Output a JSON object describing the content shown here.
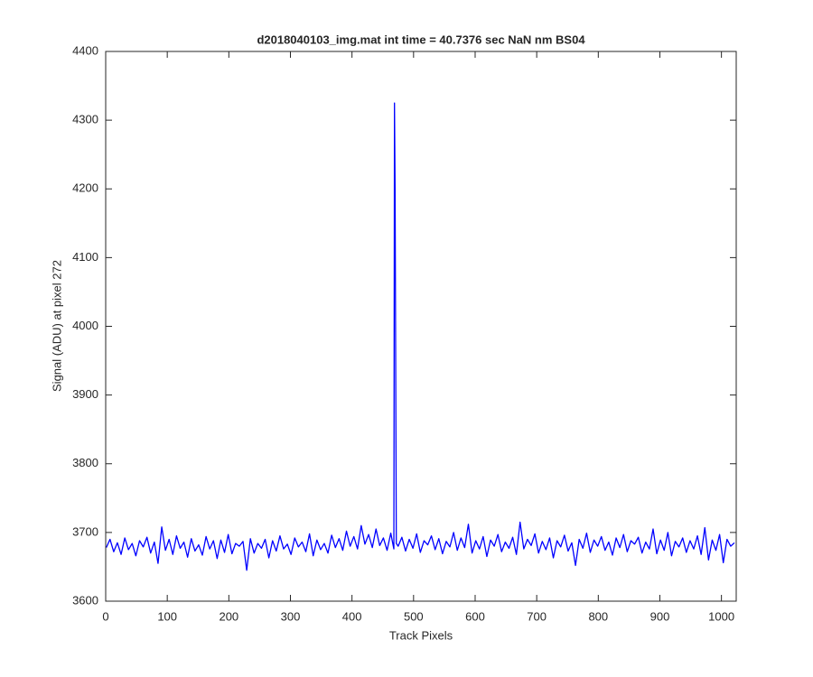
{
  "chart_data": {
    "type": "line",
    "title": "d2018040103_img.mat int time = 40.7376 sec  NaN nm BS04",
    "xlabel": "Track Pixels",
    "ylabel": "Signal (ADU) at pixel 272",
    "color": "#0000ff",
    "xlim": [
      0,
      1024
    ],
    "xticks": [
      0,
      100,
      200,
      300,
      400,
      500,
      600,
      700,
      800,
      900,
      1000
    ],
    "ylim": [
      3600,
      4400
    ],
    "yticks": [
      3600,
      3700,
      3800,
      3900,
      4000,
      4100,
      4200,
      4300,
      4400
    ],
    "x": [
      1,
      7,
      13,
      19,
      25,
      31,
      37,
      43,
      49,
      55,
      61,
      67,
      73,
      79,
      85,
      91,
      97,
      103,
      109,
      115,
      121,
      127,
      133,
      139,
      145,
      151,
      157,
      163,
      169,
      175,
      181,
      187,
      193,
      199,
      205,
      211,
      217,
      223,
      229,
      235,
      241,
      247,
      253,
      259,
      265,
      271,
      277,
      283,
      289,
      295,
      301,
      307,
      313,
      319,
      325,
      331,
      337,
      343,
      349,
      355,
      361,
      367,
      373,
      379,
      385,
      391,
      397,
      403,
      409,
      415,
      421,
      427,
      433,
      439,
      445,
      451,
      457,
      463,
      466,
      468,
      469,
      470,
      472,
      475,
      481,
      487,
      493,
      499,
      505,
      511,
      517,
      523,
      529,
      535,
      541,
      547,
      553,
      559,
      565,
      571,
      577,
      583,
      589,
      595,
      601,
      607,
      613,
      619,
      625,
      631,
      637,
      643,
      649,
      655,
      661,
      667,
      673,
      679,
      685,
      691,
      697,
      703,
      709,
      715,
      721,
      727,
      733,
      739,
      745,
      751,
      757,
      763,
      769,
      775,
      781,
      787,
      793,
      799,
      805,
      811,
      817,
      823,
      829,
      835,
      841,
      847,
      853,
      859,
      865,
      871,
      877,
      883,
      889,
      895,
      901,
      907,
      913,
      919,
      925,
      931,
      937,
      943,
      949,
      955,
      961,
      967,
      973,
      979,
      985,
      991,
      997,
      1003,
      1009,
      1015,
      1021
    ],
    "values": [
      3678,
      3690,
      3672,
      3685,
      3668,
      3692,
      3675,
      3684,
      3666,
      3688,
      3679,
      3693,
      3670,
      3686,
      3655,
      3708,
      3674,
      3690,
      3668,
      3695,
      3677,
      3686,
      3664,
      3691,
      3673,
      3682,
      3667,
      3694,
      3676,
      3688,
      3662,
      3689,
      3671,
      3697,
      3669,
      3684,
      3680,
      3687,
      3645,
      3691,
      3670,
      3684,
      3677,
      3690,
      3663,
      3688,
      3673,
      3695,
      3676,
      3683,
      3668,
      3692,
      3679,
      3686,
      3672,
      3698,
      3666,
      3689,
      3675,
      3684,
      3670,
      3696,
      3678,
      3691,
      3674,
      3702,
      3680,
      3694,
      3676,
      3710,
      3683,
      3697,
      3678,
      3705,
      3681,
      3692,
      3674,
      3699,
      3685,
      3676,
      4325,
      4198,
      3684,
      3680,
      3693,
      3673,
      3690,
      3677,
      3698,
      3671,
      3688,
      3682,
      3695,
      3675,
      3691,
      3669,
      3687,
      3679,
      3700,
      3674,
      3692,
      3678,
      3712,
      3670,
      3688,
      3676,
      3694,
      3665,
      3689,
      3680,
      3697,
      3672,
      3686,
      3677,
      3693,
      3668,
      3715,
      3676,
      3690,
      3681,
      3698,
      3670,
      3687,
      3675,
      3692,
      3663,
      3688,
      3679,
      3696,
      3673,
      3685,
      3652,
      3690,
      3677,
      3699,
      3671,
      3689,
      3680,
      3694,
      3674,
      3686,
      3667,
      3692,
      3678,
      3697,
      3672,
      3688,
      3683,
      3693,
      3670,
      3686,
      3676,
      3705,
      3669,
      3689,
      3674,
      3700,
      3666,
      3687,
      3679,
      3692,
      3671,
      3688,
      3676,
      3695,
      3668,
      3707,
      3660,
      3689,
      3674,
      3697,
      3656,
      3690,
      3680,
      3685
    ]
  }
}
